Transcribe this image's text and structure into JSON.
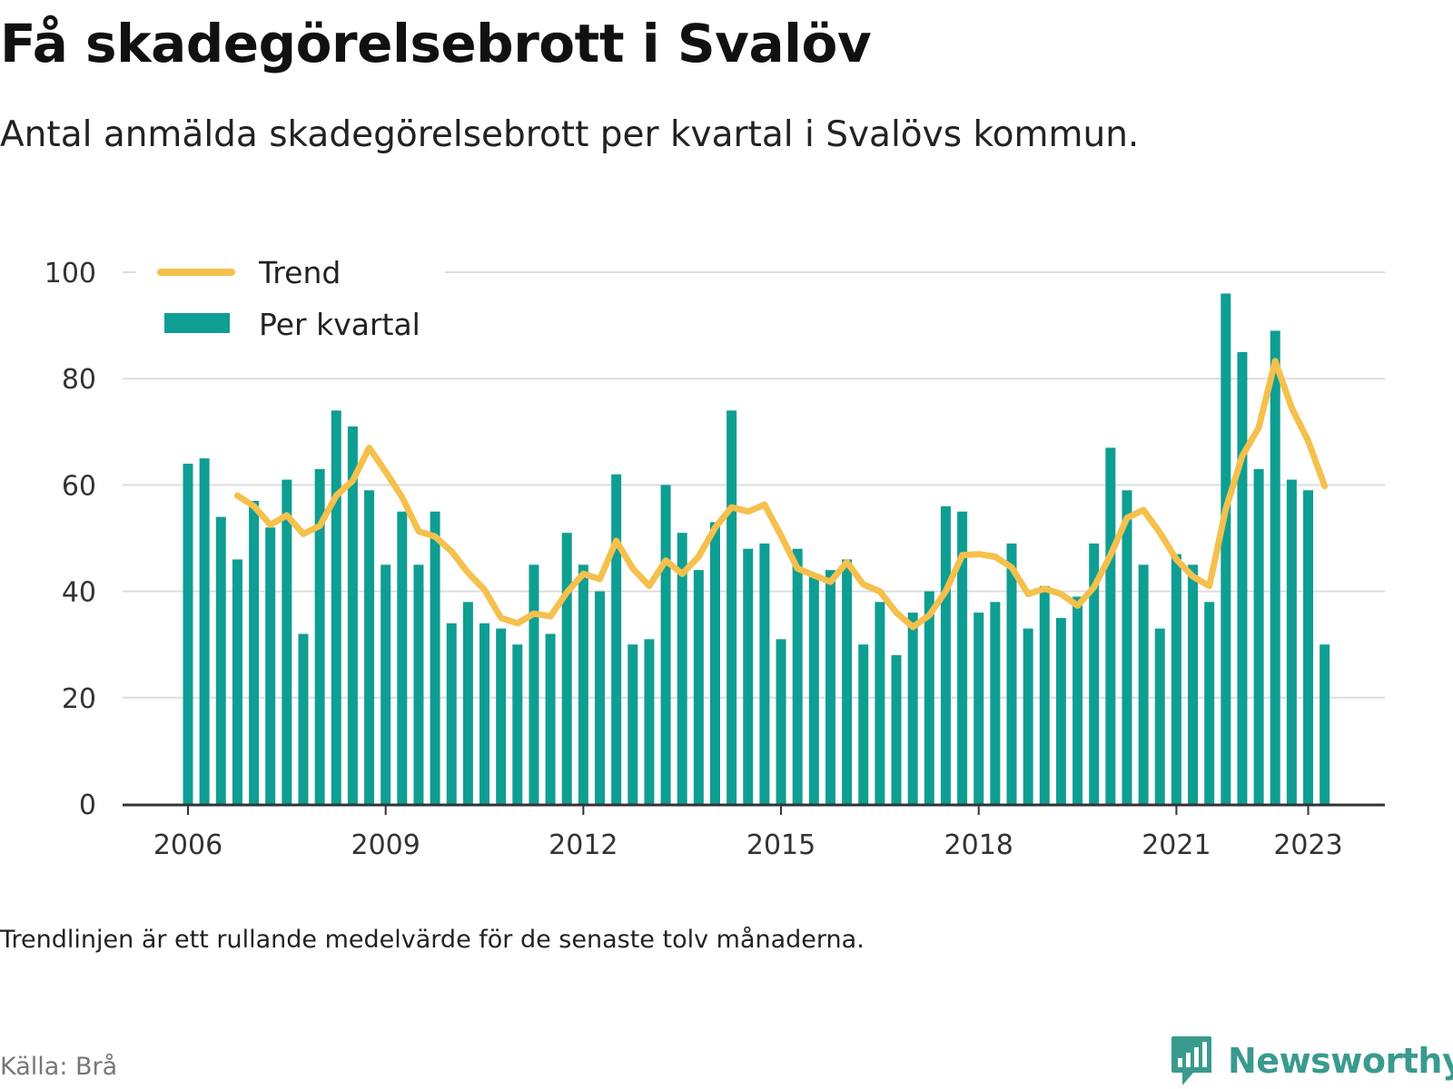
{
  "header": {
    "title": "Få skadegörelsebrott i Svalöv",
    "subtitle": "Antal anmälda skadegörelsebrott per kvartal i Svalövs kommun."
  },
  "footer": {
    "note": "Trendlinjen är ett rullande medelvärde för de senaste tolv månaderna.",
    "source": "Källa: Brå",
    "brand": "Newsworthy"
  },
  "colors": {
    "bar": "#0f9e93",
    "trend": "#f5c04c",
    "grid": "#dddddd",
    "axis": "#333333",
    "brand": "#3a9a8e"
  },
  "chart_data": {
    "type": "bar",
    "x_start": "2006 Q1",
    "ylim": [
      0,
      100
    ],
    "yticks": [
      0,
      20,
      40,
      60,
      80,
      100
    ],
    "xtick_labels": [
      "2006",
      "2009",
      "2012",
      "2015",
      "2018",
      "2021",
      "2023"
    ],
    "xtick_quarter_index": [
      0,
      12,
      24,
      36,
      48,
      60,
      68
    ],
    "grid": true,
    "legend_position": "top-left",
    "series": [
      {
        "name": "Per kvartal",
        "type": "bar",
        "values": [
          64,
          65,
          54,
          46,
          57,
          52,
          61,
          32,
          63,
          74,
          71,
          59,
          45,
          55,
          45,
          55,
          34,
          38,
          34,
          33,
          30,
          45,
          32,
          51,
          45,
          40,
          62,
          30,
          31,
          60,
          51,
          44,
          53,
          74,
          48,
          49,
          31,
          48,
          43,
          44,
          46,
          30,
          38,
          28,
          36,
          40,
          56,
          55,
          36,
          38,
          49,
          33,
          41,
          35,
          39,
          49,
          67,
          59,
          45,
          33,
          47,
          45,
          38,
          96,
          85,
          63,
          89,
          61,
          59,
          30
        ]
      },
      {
        "name": "Trend",
        "type": "line",
        "start_index": 3,
        "values": [
          58,
          56,
          52.5,
          54.3,
          50.8,
          52.3,
          58,
          60.8,
          67,
          62.5,
          57.7,
          51.3,
          50.3,
          47.5,
          43.5,
          40.3,
          35,
          34,
          35.8,
          35.3,
          39.8,
          43.3,
          42.3,
          49.5,
          44.3,
          41,
          45.8,
          43.3,
          46.5,
          52,
          55.8,
          55,
          56.3,
          50.5,
          44.3,
          43,
          41.8,
          45.5,
          41.3,
          40,
          36,
          33.3,
          35.5,
          40,
          46.8,
          47,
          46.5,
          44.5,
          39.5,
          40.5,
          39.5,
          37.3,
          40.8,
          46.8,
          53.8,
          55.3,
          51,
          46,
          42.8,
          41,
          55.5,
          65.5,
          70.8,
          83.3,
          74.5,
          68.3,
          59.8
        ]
      }
    ]
  }
}
